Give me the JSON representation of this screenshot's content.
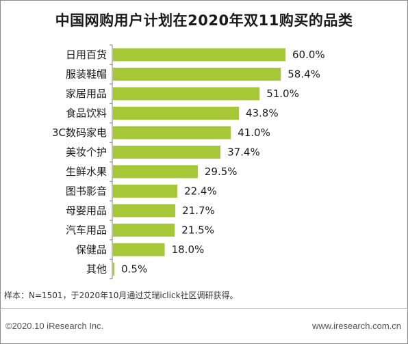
{
  "chart_data": {
    "type": "bar",
    "orientation": "horizontal",
    "title": "中国网购用户计划在2020年双11购买的品类",
    "categories": [
      "日用百货",
      "服装鞋帽",
      "家居用品",
      "食品饮料",
      "3C数码家电",
      "美妆个护",
      "生鲜水果",
      "图书影音",
      "母婴用品",
      "汽车用品",
      "保健品",
      "其他"
    ],
    "values": [
      60.0,
      58.4,
      51.0,
      43.8,
      41.0,
      37.4,
      29.5,
      22.4,
      21.7,
      21.5,
      18.0,
      0.5
    ],
    "value_labels": [
      "60.0%",
      "58.4%",
      "51.0%",
      "43.8%",
      "41.0%",
      "37.4%",
      "29.5%",
      "22.4%",
      "21.7%",
      "21.5%",
      "18.0%",
      "0.5%"
    ],
    "unit": "%",
    "xlim": [
      0,
      60
    ],
    "grid": false,
    "bar_color": "#a6c837",
    "axis_color": "#7f7f7f"
  },
  "note": "样本：N=1501，于2020年10月通过艾瑞iclick社区调研获得。",
  "footer": {
    "copyright": "©2020.10 iResearch Inc.",
    "website": "www.iresearch.com.cn"
  }
}
